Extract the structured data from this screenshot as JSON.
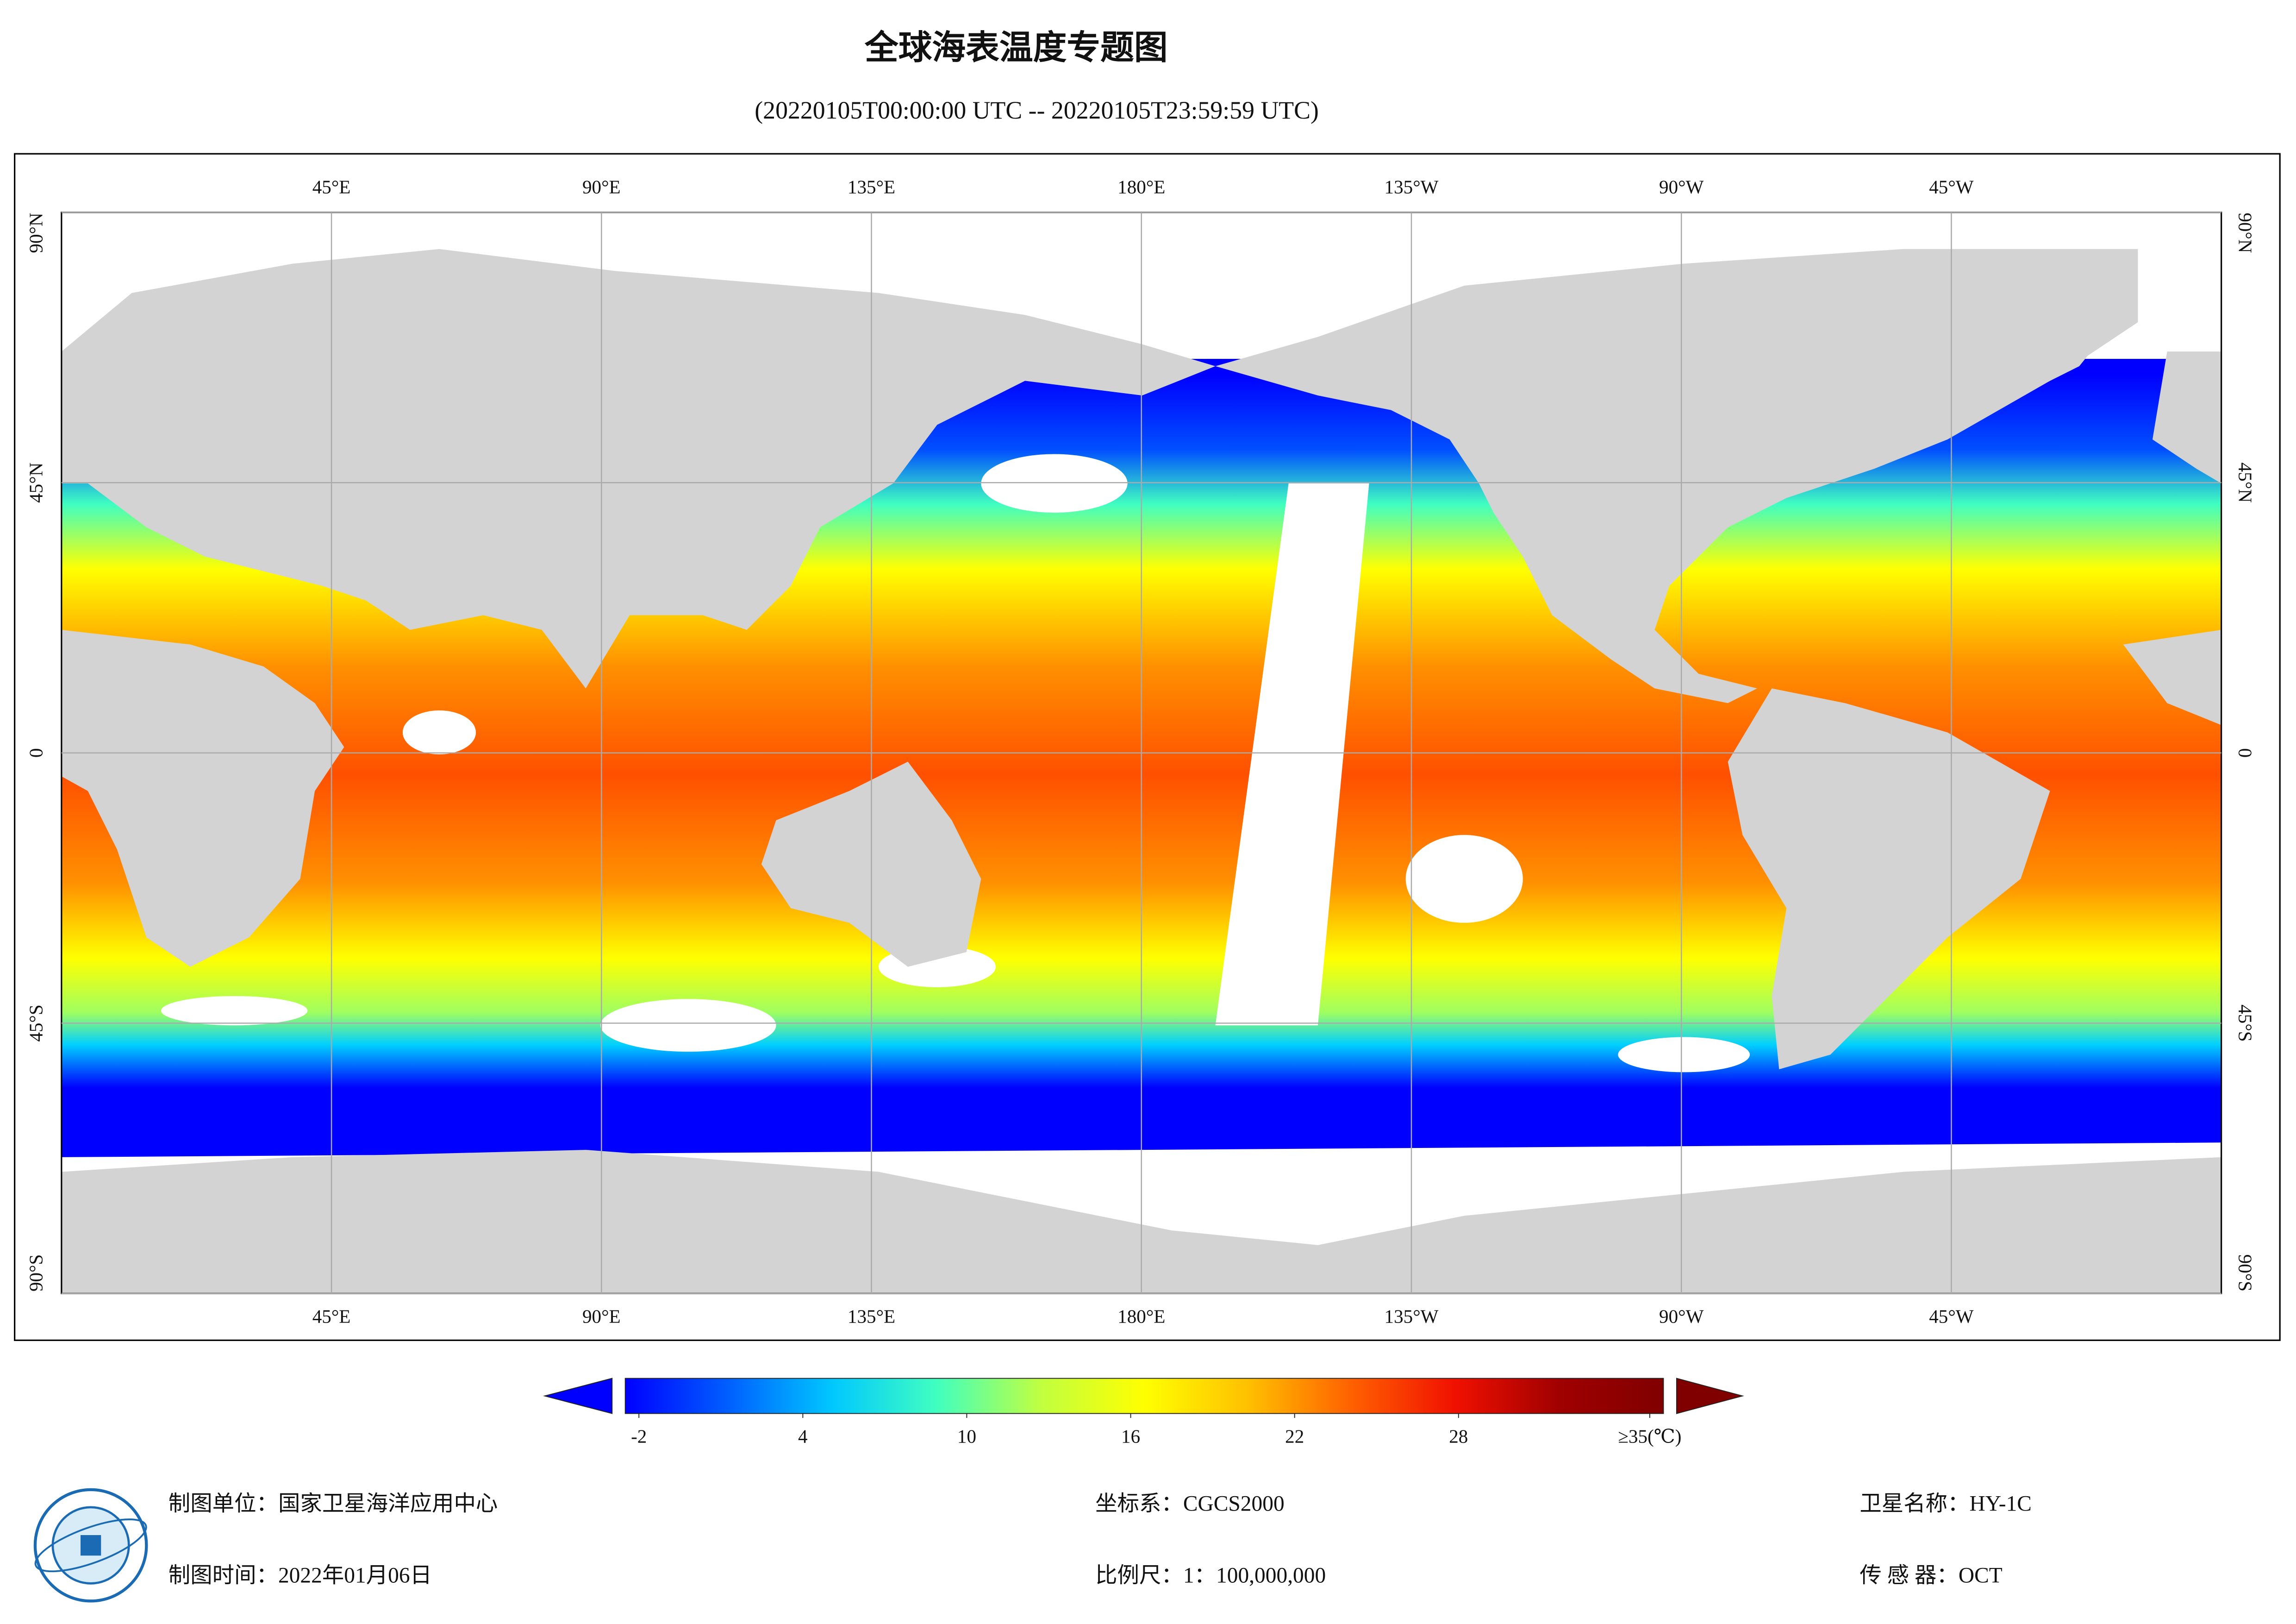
{
  "header": {
    "title": "全球海表温度专题图",
    "subtitle": "(20220105T00:00:00 UTC -- 20220105T23:59:59 UTC)"
  },
  "map": {
    "lonlim": [
      0,
      360
    ],
    "latlim": [
      -90,
      90
    ],
    "lon_ticks": [
      {
        "value": 45,
        "label": "45°E"
      },
      {
        "value": 90,
        "label": "90°E"
      },
      {
        "value": 135,
        "label": "135°E"
      },
      {
        "value": 180,
        "label": "180°E"
      },
      {
        "value": 225,
        "label": "135°W"
      },
      {
        "value": 270,
        "label": "90°W"
      },
      {
        "value": 315,
        "label": "45°W"
      }
    ],
    "lat_ticks": [
      {
        "value": 90,
        "label": "90°N"
      },
      {
        "value": 45,
        "label": "45°N"
      },
      0,
      {
        "value": -45,
        "label": "45°S"
      },
      {
        "value": -90,
        "label": "90°S"
      }
    ]
  },
  "colorbar": {
    "lim": [
      -2.5,
      35.5
    ],
    "colors": [
      "#0000ff",
      "#0060ff",
      "#00c8ff",
      "#40ffc0",
      "#c0ff40",
      "#ffff00",
      "#ffc000",
      "#ff6000",
      "#f01000",
      "#a00000",
      "#800000"
    ],
    "ticks": [
      -2,
      4,
      10,
      16,
      22,
      28,
      {
        "value": 35,
        "label": "≥35(℃)"
      }
    ]
  },
  "footer": {
    "unit": "制图单位：国家卫星海洋应用中心",
    "date": "制图时间：2022年01月06日",
    "crs": "坐标系：CGCS2000",
    "scale": "比例尺：1：100,000,000",
    "satellite": "卫星名称：HY-1C",
    "sensor": "传 感 器：OCT"
  }
}
